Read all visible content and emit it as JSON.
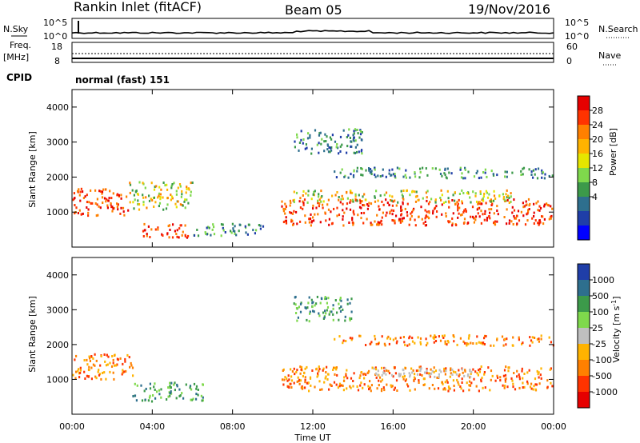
{
  "header": {
    "station": "Rankin Inlet (fitACF)",
    "beam": "Beam 05",
    "date": "19/Nov/2016"
  },
  "summary_panel": {
    "nsky_label": "N.Sky",
    "nsearch_label": "N.Search",
    "count_ticks": [
      "10^5",
      "10^0"
    ],
    "freq_label_1": "Freq.",
    "freq_label_2": "[MHz]",
    "freq_ticks": [
      "18",
      "8"
    ],
    "nave_label": "Nave",
    "nave_ticks": [
      "60",
      "0"
    ],
    "cpid_label": "CPID",
    "cpid_value": "normal (fast) 151"
  },
  "chart_data": [
    {
      "type": "heatmap",
      "title": "",
      "ylabel": "Slant Range [km]",
      "xlabel": "",
      "colorbar_label": "Power [dB]",
      "colorbar_ticks": [
        "28",
        "24",
        "20",
        "16",
        "12",
        "8",
        "4"
      ],
      "colorbar_colors": [
        "#e60000",
        "#ff3300",
        "#ff8000",
        "#ffb300",
        "#e6e600",
        "#7fd94c",
        "#3c9a4a",
        "#2e6f8e",
        "#1f3ea8",
        "#0000ff"
      ],
      "ylim": [
        0,
        4500
      ],
      "yticks": [
        "4000",
        "3000",
        "2000",
        "1000"
      ],
      "xlim": [
        "00:00",
        "24:00"
      ],
      "scatter_regions": [
        {
          "t0": 0.0,
          "t1": 2.8,
          "r0": 900,
          "r1": 1700,
          "level": "high"
        },
        {
          "t0": 2.8,
          "t1": 6.0,
          "r0": 1100,
          "r1": 1900,
          "level": "mid"
        },
        {
          "t0": 3.5,
          "t1": 6.0,
          "r0": 300,
          "r1": 700,
          "level": "high"
        },
        {
          "t0": 6.0,
          "t1": 9.5,
          "r0": 350,
          "r1": 700,
          "level": "low"
        },
        {
          "t0": 10.4,
          "t1": 24.0,
          "r0": 650,
          "r1": 1400,
          "level": "high"
        },
        {
          "t0": 11.0,
          "t1": 22.0,
          "r0": 1300,
          "r1": 1650,
          "level": "mid"
        },
        {
          "t0": 11.0,
          "t1": 14.5,
          "r0": 2700,
          "r1": 3400,
          "level": "low"
        },
        {
          "t0": 13.0,
          "t1": 24.0,
          "r0": 2000,
          "r1": 2300,
          "level": "low"
        }
      ]
    },
    {
      "type": "heatmap",
      "title": "",
      "ylabel": "Slant Range [km]",
      "xlabel": "Time UT",
      "colorbar_label": "Velocity [m s^-1]",
      "colorbar_ticks": [
        "1000",
        "500",
        "100",
        "25",
        "-25",
        "-100",
        "-500",
        "-1000"
      ],
      "colorbar_colors": [
        "#1f3ea8",
        "#2e6f8e",
        "#3c9a4a",
        "#7fd94c",
        "#bfbfbf",
        "#ffb300",
        "#ff8000",
        "#ff3300",
        "#e60000"
      ],
      "ylim": [
        0,
        4500
      ],
      "yticks": [
        "4000",
        "3000",
        "2000",
        "1000"
      ],
      "xlim": [
        "00:00",
        "24:00"
      ],
      "xticks": [
        "00:00",
        "04:00",
        "08:00",
        "12:00",
        "16:00",
        "20:00",
        "00:00"
      ],
      "scatter_regions": [
        {
          "t0": 0.0,
          "t1": 3.0,
          "r0": 1000,
          "r1": 1750,
          "level": "negative"
        },
        {
          "t0": 3.0,
          "t1": 6.5,
          "r0": 400,
          "r1": 950,
          "level": "positive"
        },
        {
          "t0": 10.4,
          "t1": 24.0,
          "r0": 700,
          "r1": 1400,
          "level": "negative"
        },
        {
          "t0": 15.0,
          "t1": 20.0,
          "r0": 1100,
          "r1": 1350,
          "level": "zero"
        },
        {
          "t0": 11.0,
          "t1": 14.0,
          "r0": 2700,
          "r1": 3400,
          "level": "positive"
        },
        {
          "t0": 13.0,
          "t1": 24.0,
          "r0": 2000,
          "r1": 2300,
          "level": "negative"
        }
      ]
    }
  ]
}
